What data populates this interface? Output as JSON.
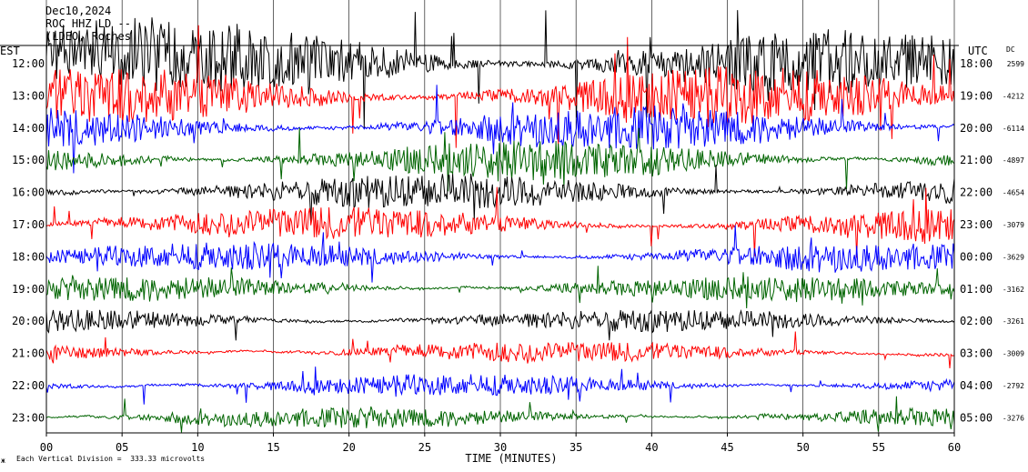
{
  "header": {
    "date": "Dec10,2024",
    "station": "ROC HHZ LD --",
    "network": "(LDEO, Roches"
  },
  "footer": {
    "scale_note": "Each Vertical Division =  333.33 microvolts",
    "mark": "ж"
  },
  "chart_data": {
    "type": "line",
    "title": "Dec10,2024",
    "xlabel": "TIME (MINUTES)",
    "x_ticks": [
      "00",
      "05",
      "10",
      "15",
      "20",
      "25",
      "30",
      "35",
      "40",
      "45",
      "50",
      "55",
      "60"
    ],
    "xlim": [
      0,
      60
    ],
    "left_axis_title": "EST",
    "right_axis_title": "UTC",
    "dc_title": "DC",
    "left_labels": [
      "12:00",
      "13:00",
      "14:00",
      "15:00",
      "16:00",
      "17:00",
      "18:00",
      "19:00",
      "20:00",
      "21:00",
      "22:00",
      "23:00"
    ],
    "right_labels": [
      "18:00",
      "19:00",
      "20:00",
      "21:00",
      "22:00",
      "23:00",
      "00:00",
      "01:00",
      "02:00",
      "03:00",
      "04:00",
      "05:00"
    ],
    "dc_values": [
      "2599",
      "-4212",
      "-6114",
      "-4897",
      "-4654",
      "-3079",
      "-3629",
      "-3162",
      "-3261",
      "-3009",
      "-2792",
      "-3276"
    ],
    "trace_colors": [
      "#000000",
      "#ff0000",
      "#0000ff",
      "#006400"
    ],
    "noise_levels": [
      2.2,
      1.9,
      1.4,
      1.3,
      1.2,
      1.1,
      0.9,
      0.8,
      0.75,
      0.7,
      0.7,
      0.65
    ],
    "grid": "vertical"
  }
}
